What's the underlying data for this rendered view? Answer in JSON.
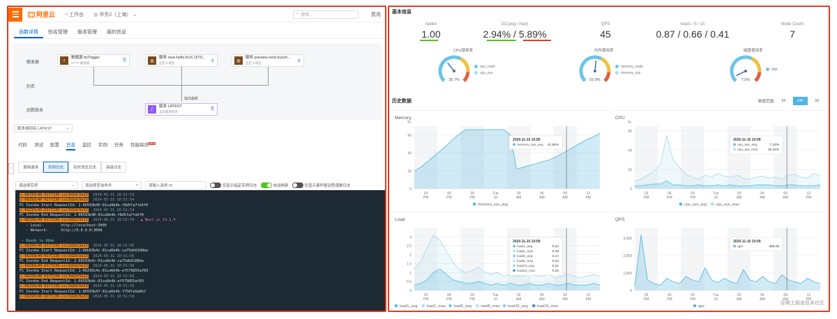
{
  "left": {
    "topbar": {
      "logo_text": "阿里云",
      "workbench": "工作台",
      "region": "华东2（上海）",
      "search_placeholder": "搜索...",
      "right_label": "费用"
    },
    "tabs": [
      "函数详情",
      "别名管理",
      "版本管理",
      "层的信息"
    ],
    "flow": {
      "trigger_label": "触发器",
      "alias_label": "别名",
      "version_label": "函数版本",
      "trigger_text": "数据源 ttsTrigger",
      "trigger_sub": "HTTP 触发器",
      "node2_text": "服务 next-hello.fcv3.1579...",
      "node2_sub": "自定义域名",
      "node3_text": "服务 preview-next.hunch...",
      "node3_sub": "自定义域名",
      "latest_label": "指向最新",
      "version_node_text": "版本 LATEST",
      "version_node_sub": "当前最新版本"
    },
    "version_select": "版本或别名 LATEST",
    "subtabs": [
      "代码",
      "测试",
      "配置",
      "日志",
      "监控",
      "实例",
      "任务",
      "性能探测"
    ],
    "subtab_new_badge": "NEW",
    "log_buttons": [
      "调用请求",
      "实例日志",
      "实时流式日志",
      "高级日志"
    ],
    "filters": {
      "instance_select": "请选择实例",
      "search_placeholder": "请选择查询条件",
      "request_id": "请输入请求 ID",
      "toggle1": "仅显示指定实例日志",
      "toggle2": "自动刷新",
      "toggle3": "仅显示事件驱动型函数日志"
    },
    "console": [
      {
        "hl": "c-66293c40-01f7239-ccc3d2dc5e13",
        "ts": "2024-05-31 10:51:53"
      },
      {
        "hl": "c-66293c40-01f7239-ccc3d2dc5e13",
        "ts": "2024-05-31 10:51:54"
      },
      {
        "plain": "FC Invoke Start RequestId: 1-66593b40-01ca9b4b-f8d5fa7fa5f0"
      },
      {
        "hl": "c-66293c40-01f7239-ccc3d2dc5e13",
        "ts": "2024-05-31 10:51:54"
      },
      {
        "plain": "FC Invoke End RequestId: 1-66593b40-01ca9b4b-f8d5fa7fa5f0"
      },
      {
        "hl": "c-66293c40-01f7239-ccc3d2dc5e13",
        "ts": "2024-05-31 10:51:54",
        "nx": "▲ Next.js 14.1.4"
      },
      {
        "plain": "   - Local:        http://localhost:3000"
      },
      {
        "plain": "   - Network:      http://0.0.0.0:3000"
      },
      {
        "plain": ""
      },
      {
        "cy": " ✓ Ready in 86ms"
      },
      {
        "hl": "c-66293c40-01f7239-ccc3d2dc5e13",
        "ts": "2024-05-31 10:51:56"
      },
      {
        "plain": "FC Invoke Start RequestId: 1-66b93b4c-01ca6b4b-ca75db0108be"
      },
      {
        "hl": "c-66293c40-01f7239-ccc3d2dc5e13",
        "ts": "2024-05-31 10:51:56"
      },
      {
        "plain": "FC Invoke End RequestId: 1-66593b4c-01ca6b4b-ca75db0108be"
      },
      {
        "hl": "c-66293c40-01f7239-ccc3d2dc5e13",
        "ts": "2024-05-31 10:51:58"
      },
      {
        "plain": "FC Invoke Start RequestId: 1-66293c4c-01ca6b4b-ef579855af03"
      },
      {
        "hl": "c-66293c40-01f7239-ccc3d2dc5e13",
        "ts": "2024-05-31 10:51:58"
      },
      {
        "plain": "FC Invoke End RequestId: 1-66593b4c-01ca9b4b-ef579855af03"
      },
      {
        "hl": "c-66293c40-01f7239-ccc3d2dc5e13",
        "ts": "2024-05-31 10:51:59"
      },
      {
        "plain": "FC Invoke Start RequestId: 1-66593b47-01ca6b4b-f750fa9a6b7"
      },
      {
        "hl": "c-66293c40-01f7239-ccc3d2dc5e13",
        "ts": "2024-05-31 10:51:59"
      }
    ]
  },
  "right": {
    "basic_title": "基本信息",
    "stats": [
      {
        "label": "Apdex",
        "value": "1.00"
      },
      {
        "label": "GC(avg / max)",
        "value": "2.94% / 5.89%"
      },
      {
        "label": "QPS",
        "value": "45"
      },
      {
        "label": "load1 / 5 / 15",
        "value": "0.87 / 0.66 / 0.41"
      },
      {
        "label": "Node Count",
        "value": "7"
      }
    ],
    "gauges": [
      {
        "title": "CPU使用率",
        "value": "35.7%",
        "level": 0.357,
        "legend": [
          "cpu_node",
          "cpu_sys"
        ]
      },
      {
        "title": "内存使用率",
        "value": "52.0%",
        "level": 0.52,
        "legend": [
          "memory_node",
          "memory_sys"
        ]
      },
      {
        "title": "磁盘使用率",
        "value": "7.0%",
        "level": 0.07,
        "legend": [
          "disk"
        ]
      }
    ],
    "history_title": "历史数据",
    "range_label": "数据范围:",
    "ranges": [
      "6h",
      "24h",
      "3d"
    ],
    "active_range": "24h",
    "colors": {
      "accent": "#4db3e8",
      "line": "#6cc5e6",
      "green": "#52c41a",
      "red": "#e5391f"
    },
    "watermark": "@稀土掘金技术社区"
  },
  "chart_data": [
    {
      "type": "area",
      "title": "Memory",
      "yunit": "%",
      "ylim": [
        0,
        70
      ],
      "yticks": [
        0,
        20,
        40,
        60
      ],
      "xticks": [
        "03 PM",
        "06 PM",
        "09 PM",
        "Tue 10",
        "03 AM",
        "06 AM",
        "09 AM",
        "12 PM"
      ],
      "series": [
        {
          "name": "memory_sys_avg",
          "values": [
            20,
            24,
            30,
            36,
            42,
            48,
            55,
            61,
            66,
            66,
            66,
            66,
            66,
            66,
            66,
            60,
            22,
            24,
            26,
            28,
            30,
            32,
            35,
            39,
            43,
            47,
            51,
            55,
            58,
            62
          ]
        }
      ],
      "tooltip": {
        "time": "2020-11-10 10:59",
        "items": [
          {
            "name": "memory_sys_avg",
            "value": "41.55%"
          }
        ]
      }
    },
    {
      "type": "area",
      "title": "CPU",
      "yunit": "%",
      "ylim": [
        0,
        65
      ],
      "yticks": [
        0,
        20,
        40,
        60
      ],
      "xticks": [
        "03 PM",
        "06 PM",
        "09 PM",
        "Tue 10",
        "03 AM",
        "06 AM",
        "09 AM",
        "12 PM"
      ],
      "series": [
        {
          "name": "cpu_sys_avg",
          "values": [
            3,
            3,
            4,
            5,
            5,
            8,
            4,
            4,
            3,
            3,
            4,
            3,
            3,
            4,
            3,
            4,
            3,
            3,
            3,
            4,
            4,
            4,
            3,
            3,
            4,
            4,
            3,
            3,
            3,
            4
          ]
        },
        {
          "name": "cpu_sys_max",
          "values": [
            8,
            10,
            14,
            18,
            25,
            55,
            30,
            22,
            15,
            12,
            10,
            14,
            12,
            16,
            13,
            12,
            14,
            11,
            10,
            12,
            13,
            11,
            12,
            10,
            14,
            15,
            12,
            11,
            16,
            13
          ]
        }
      ],
      "tooltip": {
        "time": "2020-11-10 10:59",
        "items": [
          {
            "name": "cpu_sys_avg",
            "value": "7.42%"
          },
          {
            "name": "cpu_sys_max",
            "value": "18.15%"
          }
        ]
      }
    },
    {
      "type": "area",
      "title": "Load",
      "ylim": [
        0,
        3.5
      ],
      "yticks": [
        0,
        0.5,
        1,
        1.5,
        2,
        2.5,
        3
      ],
      "xticks": [
        "03 PM",
        "06 PM",
        "09 PM",
        "Tue 10",
        "03 AM",
        "06 AM",
        "09 AM",
        "12 PM"
      ],
      "series": [
        {
          "name": "load1_avg",
          "values": [
            0.3,
            0.4,
            0.6,
            1.0,
            1.2,
            0.9,
            0.6,
            0.5,
            0.4,
            0.4,
            0.5,
            0.4,
            0.3,
            0.4,
            0.3,
            0.4,
            0.3,
            0.3,
            0.4,
            0.3,
            0.3,
            0.4,
            0.3,
            0.3,
            0.4,
            0.3,
            0.3,
            0.3,
            0.4,
            0.3
          ]
        },
        {
          "name": "load1_max",
          "values": [
            1.2,
            1.6,
            2.4,
            3.1,
            2.8,
            2.2,
            1.6,
            1.2,
            1.0,
            1.1,
            1.3,
            1.0,
            0.9,
            1.0,
            0.8,
            0.9,
            0.8,
            0.8,
            1.0,
            0.8,
            0.8,
            0.9,
            0.7,
            0.8,
            0.9,
            0.8,
            0.7,
            0.8,
            0.9,
            0.8
          ]
        },
        {
          "name": "load5_avg",
          "values": []
        },
        {
          "name": "load5_max",
          "values": []
        },
        {
          "name": "load15_avg",
          "values": []
        },
        {
          "name": "load15_max",
          "values": []
        }
      ],
      "tooltip": {
        "time": "2020-11-10 10:59",
        "items": [
          {
            "name": "load1_avg",
            "value": "0.22"
          },
          {
            "name": "load1_max",
            "value": "0.48"
          },
          {
            "name": "load5_avg",
            "value": "0.17"
          },
          {
            "name": "load5_max",
            "value": "0.24"
          },
          {
            "name": "load15_avg",
            "value": "0.21"
          },
          {
            "name": "load15_max",
            "value": "0.22"
          }
        ]
      }
    },
    {
      "type": "area",
      "title": "QPS",
      "ylim": [
        0,
        3600
      ],
      "yticks": [
        0,
        1000,
        2000,
        3000
      ],
      "yticklabels": [
        "0",
        "1,000",
        "2,000",
        "3,000"
      ],
      "xticks": [
        "03 PM",
        "06 PM",
        "09 PM",
        "Tue 10",
        "03 AM",
        "06 AM",
        "09 AM",
        "12 PM"
      ],
      "series": [
        {
          "name": "qps",
          "values": [
            200,
            3200,
            600,
            400,
            300,
            700,
            500,
            400,
            800,
            600,
            500,
            1300,
            600,
            450,
            700,
            500,
            400,
            1200,
            600,
            500,
            800,
            500,
            400,
            900,
            600,
            500,
            400,
            700,
            500,
            400
          ]
        }
      ],
      "tooltip": {
        "time": "2020-11-10 10:59",
        "items": [
          {
            "name": "qps",
            "value": "385.00"
          }
        ]
      }
    }
  ]
}
